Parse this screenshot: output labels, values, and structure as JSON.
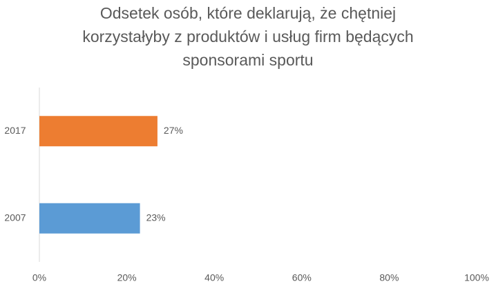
{
  "chart_data": {
    "type": "hbar",
    "title": "Odsetek osób, które deklarują, że chętniej korzystałyby z produktów i usług firm będących sponsorami sportu",
    "categories": [
      "2017",
      "2007"
    ],
    "values": [
      27,
      23
    ],
    "value_labels": [
      "27%",
      "23%"
    ],
    "colors": [
      "#ed7d31",
      "#5b9bd5"
    ],
    "xlim": [
      0,
      100
    ],
    "xticks": [
      {
        "value": 0,
        "label": "0%"
      },
      {
        "value": 20,
        "label": "20%"
      },
      {
        "value": 40,
        "label": "40%"
      },
      {
        "value": 60,
        "label": "60%"
      },
      {
        "value": 80,
        "label": "80%"
      },
      {
        "value": 100,
        "label": "100%"
      }
    ],
    "grid": false
  }
}
